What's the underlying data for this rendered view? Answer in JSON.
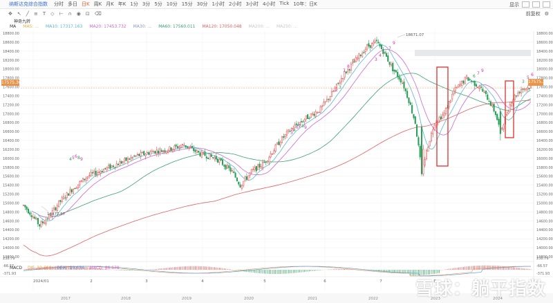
{
  "header": {
    "title": "纳斯达克综合指数",
    "periods": [
      "分时",
      "多日",
      "日K",
      "周K",
      "月K",
      "年K",
      "1分",
      "3分",
      "5分",
      "10分",
      "15分",
      "30分",
      "1小时",
      "2小时",
      "3小时",
      "4小时",
      "Tick",
      "10年：日K"
    ],
    "active_period": "日K",
    "right_label": "显示"
  },
  "toolbar2": {
    "left_items": [
      "神奇九转"
    ],
    "right_label": "前复权"
  },
  "indicators": {
    "ma_label": "MA",
    "ma5": "MA5: ...",
    "ma10": "MA10: 17317.163",
    "ma20": "MA20: 17453.732",
    "ma30": "MA30: ...",
    "ma60": "MA60: 17560.011",
    "ma120": "MA120: 17050.048",
    "ma200": "MA200: ...",
    "ma250": "MA250: ...",
    "colors": {
      "ma10": "#58b6cf",
      "ma20": "#cc66cc",
      "ma60": "#3aa070",
      "ma120": "#e06060"
    }
  },
  "price_axis": [
    "18800.00",
    "18600.00",
    "18400.00",
    "18200.00",
    "18000.00",
    "17800.00",
    "17600.00",
    "17400.00",
    "17200.00",
    "17000.00",
    "16800.00",
    "16600.00",
    "16400.00",
    "16200.00",
    "16000.00",
    "15800.00",
    "15600.00",
    "15400.00",
    "15200.00",
    "15000.00",
    "14800.00",
    "14600.00",
    "14400.00",
    "14200.00",
    "14000.00",
    "13800.00"
  ],
  "current_price": "17575.30",
  "annotations": {
    "high": "18671.07",
    "low": "14477.57"
  },
  "macd": {
    "label": "MACD",
    "dif": "DIF: 32.666",
    "dea": "DEA: -10.674",
    "macd": "MACD: 86.678",
    "axis": [
      "238.79",
      "-66.57",
      "-371.93"
    ]
  },
  "time_axis": [
    "2024/01",
    "2",
    "3",
    "4",
    "5",
    "6",
    "7",
    "8"
  ],
  "year_axis": [
    "2017",
    "2018",
    "2019",
    "2020",
    "2021",
    "2022",
    "2023",
    "2024"
  ],
  "watermark": "雪球：躺平指数"
}
